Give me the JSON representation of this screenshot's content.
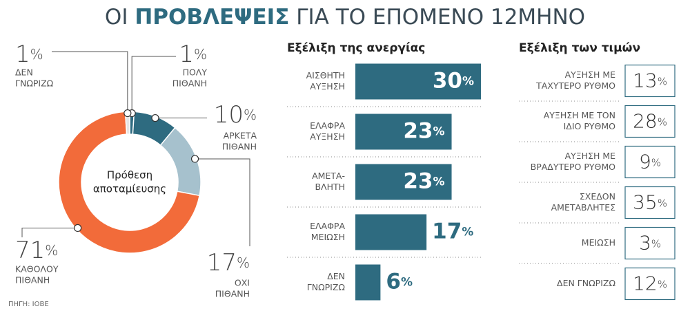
{
  "title_parts": [
    "ΟΙ ",
    "ΠΡΟΒΛΕΨΕΙΣ",
    " ΓΙΑ ΤΟ ΕΠΟΜΕΝΟ 12ΜΗΝΟ"
  ],
  "source": "ΠΗΓΗ: ΙΟΒΕ",
  "chart_data": [
    {
      "type": "donut",
      "center_label": [
        "Πρόθεση",
        "αποταμίευσης"
      ],
      "categories": [
        [
          "ΠΟΛΥ",
          "ΠΙΘΑΝΗ"
        ],
        [
          "ΑΡΚΕΤΑ",
          "ΠΙΘΑΝΗ"
        ],
        [
          "ΟΧΙ",
          "ΠΙΘΑΝΗ"
        ],
        [
          "ΚΑΘΟΛΟΥ",
          "ΠΙΘΑΝΗ"
        ],
        [
          "ΔΕΝ",
          "ΓΝΩΡΙΖΩ"
        ]
      ],
      "values": [
        1,
        10,
        17,
        71,
        1
      ],
      "value_suffix": "%",
      "colors": [
        "#2e6b80",
        "#2e6b80",
        "#a6c1cd",
        "#f26b3a",
        "#e6e6e6"
      ]
    },
    {
      "type": "hbar",
      "title": "Εξέλιξη της ανεργίας",
      "categories": [
        [
          "ΑΙΣΘΗΤΗ",
          "ΑΥΞΗΣΗ"
        ],
        [
          "ΕΛΑΦΡΑ",
          "ΑΥΞΗΣΗ"
        ],
        [
          "ΑΜΕΤΑ-",
          "ΒΛΗΤΗ"
        ],
        [
          "ΕΛΑΦΡΑ",
          "ΜΕΙΩΣΗ"
        ],
        [
          "ΔΕΝ",
          "ΓΝΩΡΙΖΩ"
        ]
      ],
      "values": [
        30,
        23,
        23,
        17,
        6
      ],
      "value_suffix": "%",
      "xlim": [
        0,
        30
      ],
      "color": "#2e6b80"
    },
    {
      "type": "table",
      "title": "Εξέλιξη των τιμών",
      "categories": [
        [
          "ΑΥΞΗΣΗ ΜΕ",
          "ΤΑΧΥΤΕΡΟ ΡΥΘΜΟ"
        ],
        [
          "ΑΥΞΗΣΗ ΜΕ ΤΟΝ",
          "ΙΔΙΟ ΡΥΘΜΟ"
        ],
        [
          "ΑΥΞΗΣΗ ΜΕ",
          "ΒΡΑΔΥΤΕΡΟ ΡΥΘΜΟ"
        ],
        [
          "ΣΧΕΔΟΝ",
          "ΑΜΕΤΑΒΛΗΤΕΣ"
        ],
        [
          "ΜΕΙΩΣΗ"
        ],
        [
          "ΔΕΝ ΓΝΩΡΙΖΩ"
        ]
      ],
      "values": [
        13,
        28,
        9,
        35,
        3,
        12
      ],
      "value_suffix": "%",
      "color": "#2e6b80"
    }
  ]
}
